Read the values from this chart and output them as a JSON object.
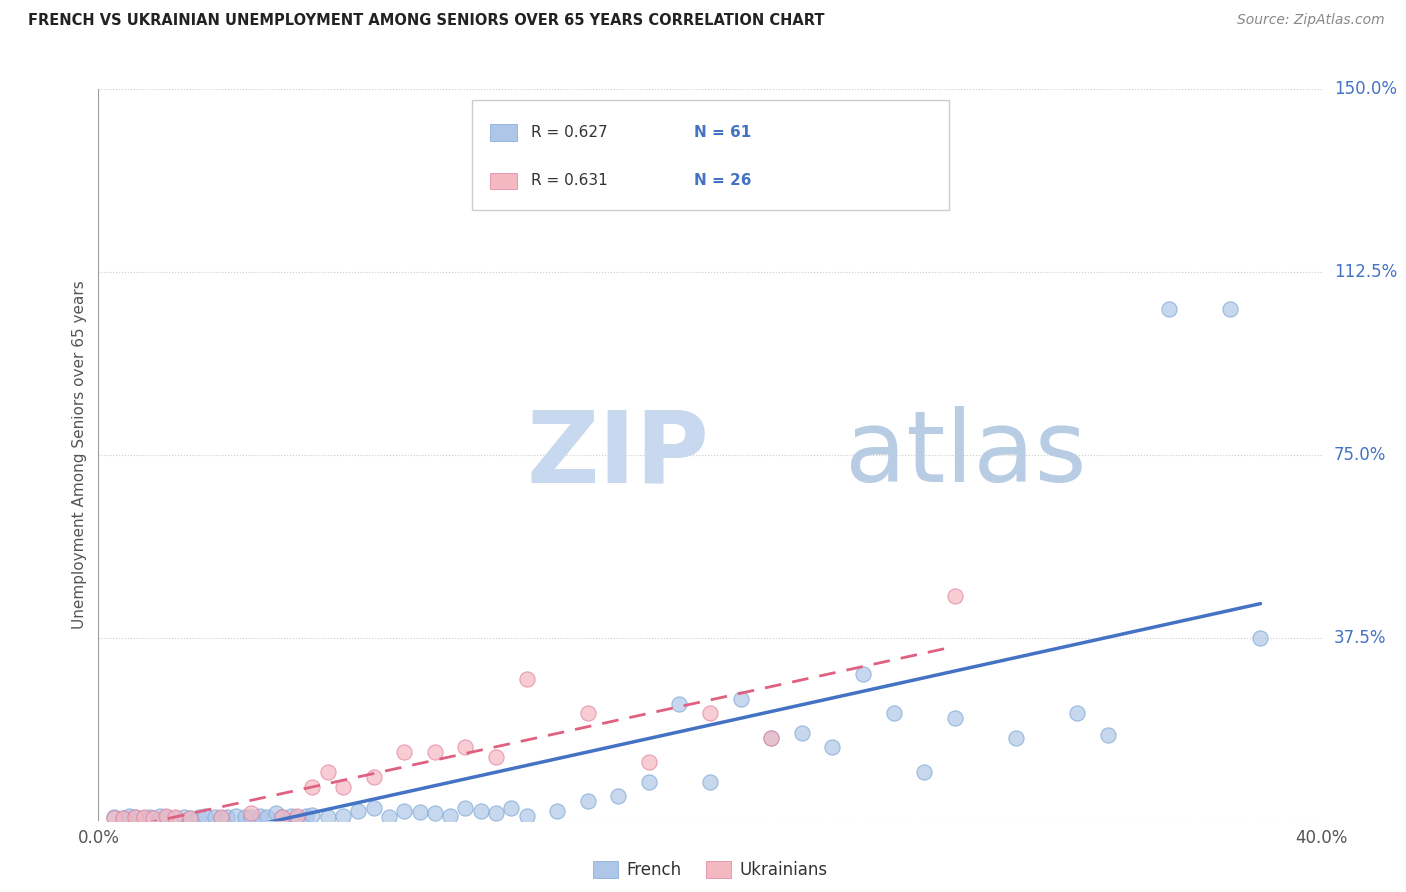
{
  "title": "FRENCH VS UKRAINIAN UNEMPLOYMENT AMONG SENIORS OVER 65 YEARS CORRELATION CHART",
  "source": "Source: ZipAtlas.com",
  "ylabel": "Unemployment Among Seniors over 65 years",
  "xlim": [
    0.0,
    0.4
  ],
  "ylim": [
    0.0,
    1.5
  ],
  "ytick_labels_right": [
    "150.0%",
    "112.5%",
    "75.0%",
    "37.5%"
  ],
  "ytick_vals_right": [
    1.5,
    1.125,
    0.75,
    0.375
  ],
  "french_color_fill": "#aec6e8",
  "french_color_edge": "#7ba7d4",
  "ukrainian_color_fill": "#f4b8c1",
  "ukrainian_color_edge": "#e080a0",
  "french_line_color": "#4472c4",
  "ukrainian_line_color": "#e06080",
  "title_color": "#222222",
  "source_color": "#888888",
  "axis_label_color": "#555555",
  "right_label_color": "#4472c4",
  "watermark_zip_color": "#c5d8ef",
  "watermark_atlas_color": "#c8d8e8",
  "legend_r_color": "#333333",
  "legend_n_color": "#4472c4",
  "french_scatter_x": [
    0.005,
    0.008,
    0.01,
    0.012,
    0.015,
    0.017,
    0.02,
    0.022,
    0.025,
    0.028,
    0.03,
    0.033,
    0.035,
    0.038,
    0.04,
    0.042,
    0.045,
    0.048,
    0.05,
    0.053,
    0.055,
    0.058,
    0.06,
    0.063,
    0.065,
    0.068,
    0.07,
    0.075,
    0.08,
    0.085,
    0.09,
    0.095,
    0.1,
    0.105,
    0.11,
    0.115,
    0.12,
    0.125,
    0.13,
    0.135,
    0.14,
    0.15,
    0.16,
    0.17,
    0.18,
    0.19,
    0.2,
    0.21,
    0.22,
    0.23,
    0.24,
    0.25,
    0.26,
    0.27,
    0.28,
    0.3,
    0.32,
    0.33,
    0.35,
    0.37,
    0.38
  ],
  "french_scatter_y": [
    0.008,
    0.005,
    0.01,
    0.007,
    0.005,
    0.008,
    0.01,
    0.007,
    0.005,
    0.008,
    0.005,
    0.008,
    0.01,
    0.007,
    0.005,
    0.008,
    0.01,
    0.007,
    0.008,
    0.01,
    0.008,
    0.015,
    0.008,
    0.01,
    0.005,
    0.01,
    0.012,
    0.008,
    0.01,
    0.02,
    0.025,
    0.008,
    0.02,
    0.018,
    0.015,
    0.01,
    0.025,
    0.02,
    0.015,
    0.025,
    0.01,
    0.02,
    0.04,
    0.05,
    0.08,
    0.24,
    0.08,
    0.25,
    0.17,
    0.18,
    0.15,
    0.3,
    0.22,
    0.1,
    0.21,
    0.17,
    0.22,
    0.175,
    1.05,
    1.05,
    0.375
  ],
  "ukrainian_scatter_x": [
    0.005,
    0.008,
    0.012,
    0.015,
    0.018,
    0.022,
    0.025,
    0.03,
    0.04,
    0.05,
    0.06,
    0.065,
    0.07,
    0.075,
    0.08,
    0.09,
    0.1,
    0.11,
    0.12,
    0.13,
    0.14,
    0.16,
    0.18,
    0.2,
    0.22,
    0.28
  ],
  "ukrainian_scatter_y": [
    0.005,
    0.005,
    0.008,
    0.007,
    0.005,
    0.01,
    0.008,
    0.005,
    0.008,
    0.015,
    0.008,
    0.01,
    0.07,
    0.1,
    0.07,
    0.09,
    0.14,
    0.14,
    0.15,
    0.13,
    0.29,
    0.22,
    0.12,
    0.22,
    0.17,
    0.46
  ],
  "background_color": "#ffffff",
  "grid_color": "#cccccc"
}
